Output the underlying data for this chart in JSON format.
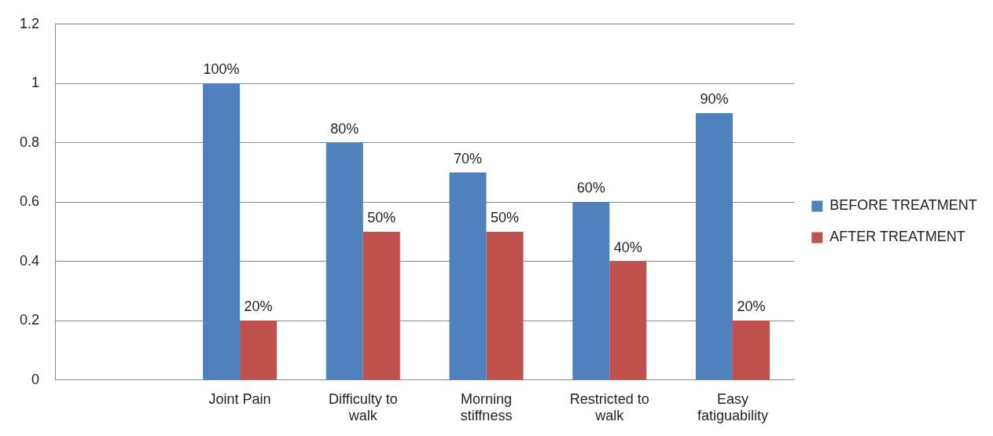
{
  "chart_data": {
    "type": "bar",
    "categories": [
      null,
      "Joint Pain",
      "Difficulty to walk",
      "Morning stiffness",
      "Restricted to walk",
      "Easy fatiguability"
    ],
    "series": [
      {
        "name": "BEFORE TREATMENT",
        "color": "#4f81bd",
        "values": [
          null,
          1,
          0.8,
          0.7,
          0.6,
          0.9
        ],
        "value_labels": [
          null,
          "100%",
          "80%",
          "70%",
          "60%",
          "90%"
        ]
      },
      {
        "name": "AFTER TREATMENT",
        "color": "#c0504d",
        "values": [
          null,
          0.2,
          0.5,
          0.5,
          0.4,
          0.2
        ],
        "value_labels": [
          null,
          "20%",
          "50%",
          "50%",
          "40%",
          "20%"
        ]
      }
    ],
    "ylim": [
      0,
      1.2
    ],
    "yticks": [
      0,
      0.2,
      0.4,
      0.6,
      0.8,
      1,
      1.2
    ],
    "grid": "y",
    "legend": "right"
  }
}
